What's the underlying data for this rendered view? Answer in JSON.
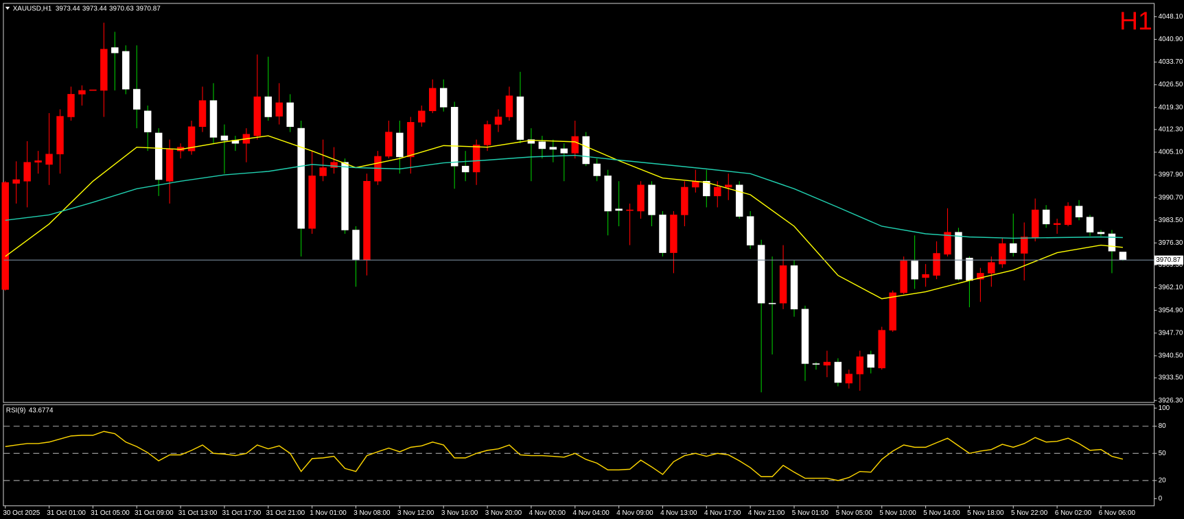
{
  "header": {
    "symbol": "XAUUSD,H1"
  },
  "timeframe_label": "H1",
  "chart_data": [
    {
      "type": "candlestick",
      "categories": [
        "30 Oct 2025",
        null,
        null,
        null,
        "31 Oct 01:00",
        null,
        null,
        null,
        "31 Oct 05:00",
        null,
        null,
        null,
        "31 Oct 09:00",
        null,
        null,
        null,
        "31 Oct 13:00",
        null,
        null,
        null,
        "31 Oct 17:00",
        null,
        null,
        null,
        "31 Oct 21:00",
        null,
        null,
        null,
        "1 Nov 01:00",
        null,
        null,
        null,
        "3 Nov 08:00",
        null,
        null,
        null,
        "3 Nov 12:00",
        null,
        null,
        null,
        "3 Nov 16:00",
        null,
        null,
        null,
        "3 Nov 20:00",
        null,
        null,
        null,
        "4 Nov 00:00",
        null,
        null,
        null,
        "4 Nov 04:00",
        null,
        null,
        null,
        "4 Nov 09:00",
        null,
        null,
        null,
        "4 Nov 13:00",
        null,
        null,
        null,
        "4 Nov 17:00",
        null,
        null,
        null,
        "4 Nov 21:00",
        null,
        null,
        null,
        "5 Nov 01:00",
        null,
        null,
        null,
        "5 Nov 05:00",
        null,
        null,
        null,
        "5 Nov 10:00",
        null,
        null,
        null,
        "5 Nov 14:00",
        null,
        null,
        null,
        "5 Nov 18:00",
        null,
        null,
        null,
        "5 Nov 22:00",
        null,
        null,
        null,
        "6 Nov 02:00",
        null,
        null,
        null,
        "6 Nov 06:00",
        null,
        null
      ],
      "open": [
        3961.5,
        3995.2,
        3995.9,
        4001.9,
        4001.2,
        4004.5,
        4016.3,
        4023.5,
        4024.7,
        4024.7,
        4038.3,
        4037.1,
        4025.1,
        4018.2,
        4011.2,
        3995.9,
        4005.5,
        4005.5,
        4013.2,
        4021.5,
        4010.3,
        4008.9,
        4007.9,
        4010.3,
        4022.7,
        4016.5,
        4020.8,
        4012.7,
        3980.9,
        3997.6,
        4000.2,
        4001.9,
        3980.4,
        3970.8,
        3995.9,
        4003.8,
        4011.2,
        4003.6,
        4014.6,
        4018.2,
        4025.4,
        4019.4,
        4000.7,
        3998.8,
        4007.4,
        4013.9,
        4016.3,
        4022.7,
        4009.1,
        4008.4,
        4006.7,
        4006.2,
        4004.8,
        4010.1,
        4001.4,
        3997.6,
        3987.1,
        3986.6,
        3986.4,
        3994.7,
        3985.2,
        3973.2,
        3985.2,
        3994.0,
        3995.9,
        3991.2,
        3994.0,
        3994.7,
        3984.7,
        3975.6,
        3957.2,
        3957.2,
        3969.1,
        3955.3,
        3938.0,
        3937.5,
        3938.5,
        3931.8,
        3934.7,
        3940.9,
        3936.6,
        3948.6,
        3960.5,
        3970.6,
        3965.3,
        3966.0,
        3972.7,
        3979.7,
        3971.5,
        3964.8,
        3966.7,
        3969.6,
        3976.1,
        3973.0,
        3978.0,
        3986.8,
        3982.1,
        3982.1,
        3988.0,
        3984.5,
        3979.7,
        3979.2,
        3973.44
      ],
      "high": [
        3995.9,
        4002.2,
        4008.6,
        4005.5,
        4017.5,
        4018.7,
        4025.9,
        4026.3,
        4024.9,
        4046.2,
        4043.3,
        4039.0,
        4039.0,
        4019.9,
        4012.7,
        4009.1,
        4007.9,
        4015.1,
        4025.9,
        4027.0,
        4013.9,
        4010.3,
        4012.7,
        4036.1,
        4035.4,
        4027.0,
        4023.5,
        4015.1,
        4005.5,
        4009.1,
        4006.7,
        4003.1,
        3981.6,
        3998.3,
        4005.5,
        4015.1,
        4015.1,
        4016.3,
        4019.9,
        4028.2,
        4028.2,
        4021.1,
        4005.5,
        4009.1,
        4015.1,
        4018.7,
        4025.9,
        4030.6,
        4012.7,
        4010.3,
        4009.1,
        4007.9,
        4015.1,
        4011.5,
        4003.1,
        3999.5,
        3995.9,
        3988.8,
        3995.9,
        3995.9,
        3986.4,
        3986.4,
        3995.9,
        3999.5,
        3999.5,
        3995.9,
        3998.3,
        3995.9,
        3986.4,
        3977.3,
        3972.0,
        3975.6,
        3970.8,
        3956.4,
        3938.5,
        3942.1,
        3939.7,
        3936.1,
        3942.1,
        3942.1,
        3949.7,
        3961.2,
        3972.0,
        3978.7,
        3969.6,
        3976.8,
        3987.3,
        3981.1,
        3972.0,
        3968.4,
        3972.0,
        3978.0,
        3985.6,
        3982.8,
        3990.4,
        3988.3,
        3984.0,
        3989.2,
        3989.9,
        3985.2,
        3980.4,
        3980.4,
        3973.44
      ],
      "low": [
        3961.2,
        3988.8,
        3987.6,
        3998.3,
        3994.7,
        3998.3,
        4015.1,
        4019.9,
        4024.7,
        4016.3,
        4024.7,
        4023.5,
        4012.7,
        4005.5,
        3991.2,
        3988.8,
        4003.1,
        4004.3,
        4011.5,
        4007.9,
        3998.3,
        4005.5,
        4001.9,
        4009.1,
        4015.1,
        4013.9,
        4011.5,
        3972.0,
        3979.2,
        3995.9,
        3998.3,
        3979.2,
        3962.4,
        3966.0,
        3994.7,
        4003.1,
        3998.3,
        3998.3,
        4013.2,
        4017.5,
        4018.0,
        3993.5,
        3995.9,
        3994.7,
        4005.5,
        4011.5,
        4015.1,
        4007.9,
        3995.9,
        4003.1,
        4001.9,
        3995.9,
        4003.1,
        4000.7,
        3995.9,
        3978.7,
        3981.6,
        3975.6,
        3984.0,
        3981.6,
        3972.0,
        3966.7,
        3981.6,
        3992.3,
        3987.6,
        3987.6,
        3989.9,
        3984.0,
        3974.4,
        3928.9,
        3940.9,
        3955.3,
        3952.9,
        3932.5,
        3936.1,
        3933.7,
        3930.8,
        3930.1,
        3929.4,
        3934.9,
        3936.1,
        3948.1,
        3960.0,
        3961.7,
        3962.4,
        3964.8,
        3972.0,
        3964.4,
        3955.9,
        3957.6,
        3962.4,
        3968.4,
        3972.0,
        3964.4,
        3976.8,
        3981.1,
        3979.2,
        3981.6,
        3983.5,
        3978.5,
        3978.5,
        3966.7,
        3970.63
      ],
      "close": [
        3995.5,
        3996.4,
        4001.9,
        4002.4,
        4004.5,
        4016.5,
        4023.5,
        4024.7,
        4024.9,
        4037.8,
        4036.6,
        4025.1,
        4018.7,
        4011.5,
        3996.4,
        4006.2,
        4006.7,
        4013.2,
        4021.5,
        4009.8,
        4008.9,
        4007.9,
        4010.8,
        4022.7,
        4016.3,
        4020.8,
        4013.2,
        3980.9,
        3997.6,
        4000.2,
        4001.9,
        3980.4,
        3970.8,
        3995.9,
        4003.8,
        4011.5,
        4003.6,
        4014.6,
        4018.2,
        4025.4,
        4019.4,
        4000.7,
        3998.8,
        4007.4,
        4013.9,
        4016.3,
        4023.0,
        4009.1,
        4007.9,
        4006.2,
        4006.0,
        4004.8,
        4010.1,
        4001.4,
        3997.6,
        3986.4,
        3986.6,
        3986.8,
        3994.7,
        3985.2,
        3973.2,
        3985.2,
        3994.0,
        3995.9,
        3991.2,
        3994.0,
        3994.7,
        3984.7,
        3975.6,
        3957.2,
        3957.0,
        3969.1,
        3955.3,
        3938.0,
        3937.8,
        3938.5,
        3932.0,
        3934.7,
        3940.2,
        3936.8,
        3948.6,
        3960.5,
        3970.6,
        3964.8,
        3966.3,
        3973.0,
        3979.7,
        3964.8,
        3964.4,
        3966.7,
        3970.1,
        3976.1,
        3973.2,
        3978.2,
        3986.8,
        3982.3,
        3982.5,
        3988.0,
        3984.5,
        3979.7,
        3979.2,
        3973.7,
        3970.87
      ],
      "up_color": "#ff0000",
      "down_color": "#ffffff",
      "up_wick_color": "#ff0000",
      "down_wick_color": "#00c800",
      "lines": [
        {
          "color": "#ffff00",
          "x": [
            0,
            4,
            8,
            12,
            16,
            20,
            24,
            28,
            32,
            36,
            40,
            44,
            48,
            52,
            56,
            60,
            64,
            68,
            72,
            76,
            80,
            84,
            88,
            92,
            96,
            100,
            102
          ],
          "values": [
            3972.0,
            3982.3,
            3995.9,
            4006.7,
            4006.0,
            4008.4,
            4010.3,
            4005.5,
            4000.2,
            4003.1,
            4007.2,
            4006.7,
            4008.9,
            4008.4,
            4002.4,
            3996.9,
            3995.5,
            3991.6,
            3981.6,
            3966.0,
            3958.6,
            3960.8,
            3964.4,
            3967.7,
            3973.2,
            3975.6,
            3974.9
          ]
        },
        {
          "color": "#20d0b0",
          "x": [
            0,
            4,
            8,
            12,
            16,
            20,
            24,
            28,
            32,
            36,
            40,
            44,
            48,
            52,
            56,
            60,
            64,
            68,
            72,
            76,
            80,
            84,
            88,
            92,
            96,
            100,
            102
          ],
          "values": [
            3983.5,
            3985.2,
            3989.2,
            3993.5,
            3995.9,
            3997.9,
            3999.0,
            4001.2,
            4000.2,
            3999.8,
            4001.7,
            4002.6,
            4003.6,
            4004.1,
            4002.6,
            4001.2,
            3999.8,
            3998.3,
            3993.5,
            3987.6,
            3981.6,
            3979.2,
            3978.2,
            3977.8,
            3978.0,
            3978.2,
            3978.0
          ]
        }
      ],
      "current_price_color": "#778899",
      "ylim": [
        3925.8,
        4052.2
      ],
      "yticks": [
        {
          "value": 4048.1,
          "label": "4048.10"
        },
        {
          "value": 4040.9,
          "label": "4040.90"
        },
        {
          "value": 4033.7,
          "label": "4033.70"
        },
        {
          "value": 4026.5,
          "label": "4026.50"
        },
        {
          "value": 4019.3,
          "label": "4019.30"
        },
        {
          "value": 4012.3,
          "label": "4012.30"
        },
        {
          "value": 4005.1,
          "label": "4005.10"
        },
        {
          "value": 3997.9,
          "label": "3997.90"
        },
        {
          "value": 3990.7,
          "label": "3990.70"
        },
        {
          "value": 3983.5,
          "label": "3983.50"
        },
        {
          "value": 3976.3,
          "label": "3976.30"
        },
        {
          "value": 3969.3,
          "label": "3969.30"
        },
        {
          "value": 3962.1,
          "label": "3962.10"
        },
        {
          "value": 3954.9,
          "label": "3954.90"
        },
        {
          "value": 3947.7,
          "label": "3947.70"
        },
        {
          "value": 3940.5,
          "label": "3940.50"
        },
        {
          "value": 3933.5,
          "label": "3933.50"
        },
        {
          "value": 3926.3,
          "label": "3926.30"
        }
      ]
    },
    {
      "type": "line",
      "title": "RSI(9)",
      "series": [
        {
          "color": "#ffd700",
          "values": [
            57.5,
            59.2,
            60.8,
            60.8,
            62.5,
            65.8,
            69.2,
            70.0,
            70.0,
            74.2,
            71.7,
            62.5,
            57.5,
            50.8,
            41.7,
            48.3,
            48.3,
            53.3,
            59.2,
            50.0,
            49.2,
            47.5,
            50.0,
            59.2,
            55.0,
            58.3,
            50.0,
            30.0,
            44.2,
            45.0,
            46.7,
            33.3,
            30.0,
            47.5,
            51.7,
            55.8,
            51.7,
            56.7,
            58.3,
            62.5,
            59.2,
            45.0,
            45.0,
            50.0,
            53.3,
            55.0,
            59.2,
            48.3,
            47.5,
            47.5,
            46.7,
            45.8,
            50.0,
            43.3,
            39.2,
            31.7,
            31.7,
            32.5,
            42.5,
            35.0,
            26.7,
            40.8,
            47.5,
            50.0,
            46.7,
            50.0,
            48.3,
            41.7,
            34.2,
            24.2,
            24.2,
            36.7,
            29.2,
            22.5,
            22.5,
            22.5,
            20.0,
            23.3,
            30.0,
            29.2,
            43.3,
            52.5,
            59.2,
            56.7,
            56.7,
            61.7,
            66.7,
            58.3,
            50.0,
            52.5,
            54.2,
            60.0,
            56.7,
            60.8,
            67.5,
            62.5,
            63.3,
            66.7,
            60.8,
            53.3,
            54.2,
            46.7,
            43.6774
          ]
        }
      ],
      "ylim": [
        -7.5,
        103.3
      ],
      "yticks": [
        100,
        80,
        50,
        20,
        0
      ],
      "levels": [
        80,
        50,
        20
      ]
    }
  ]
}
